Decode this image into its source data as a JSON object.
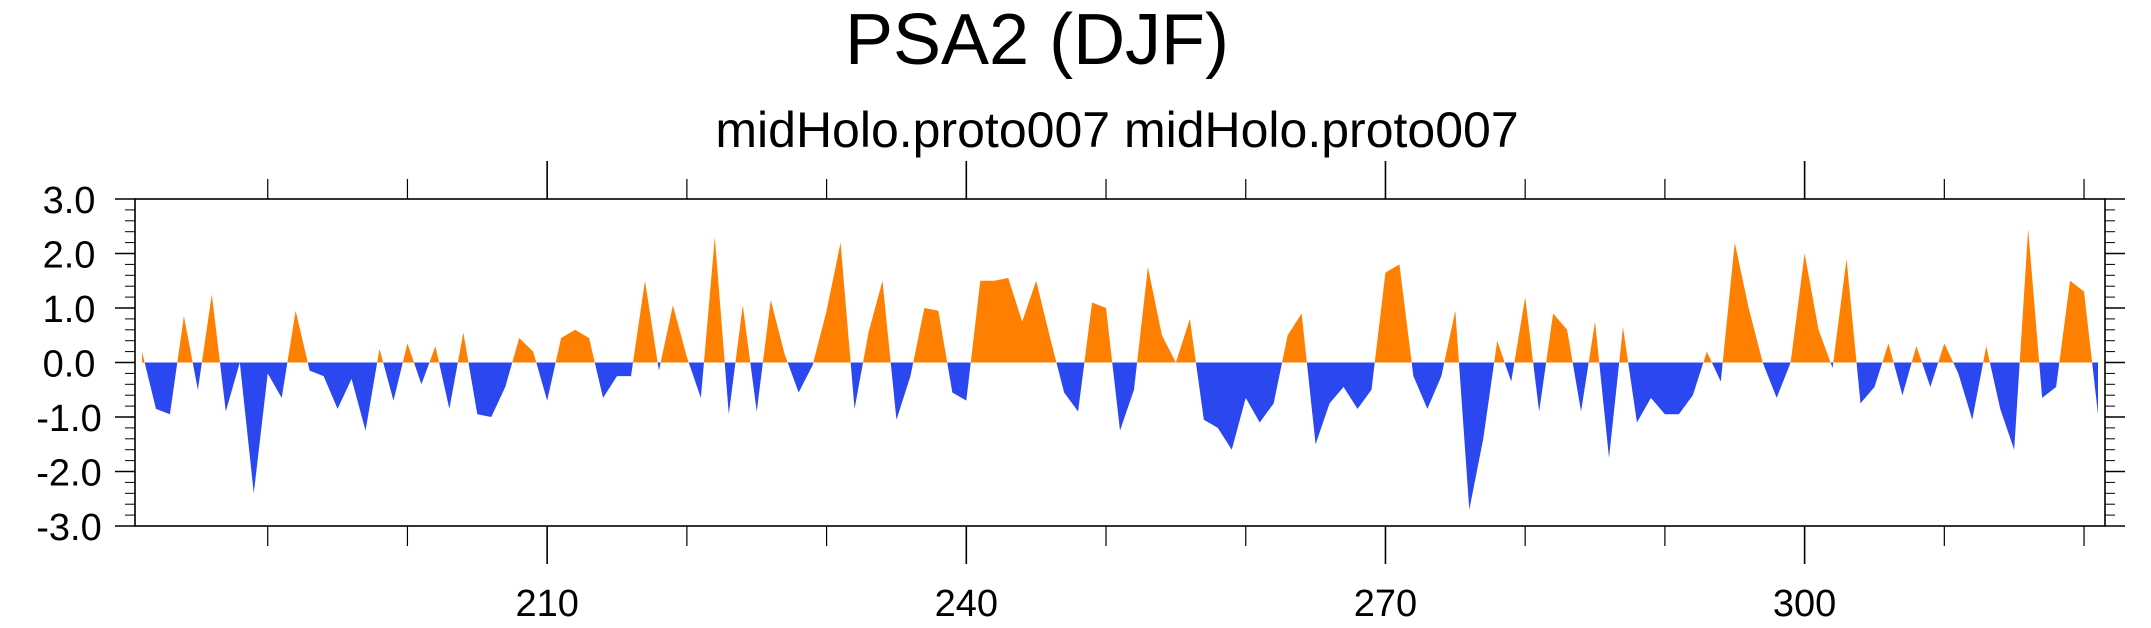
{
  "chart_data": {
    "type": "area",
    "title": "PSA2 (DJF)",
    "subtitle": "midHolo.proto007  midHolo.proto007",
    "xlabel": "",
    "ylabel": "",
    "xlim": [
      180.5,
      321.5
    ],
    "ylim": [
      -3.0,
      3.0
    ],
    "x_ticks": [
      210,
      240,
      270,
      300
    ],
    "y_ticks": [
      "3.0",
      "2.0",
      "1.0",
      "0.0",
      "-1.0",
      "-2.0",
      "-3.0"
    ],
    "y_tick_values": [
      3,
      2,
      1,
      0,
      -1,
      -2,
      -3
    ],
    "baseline": 0,
    "grid": false,
    "positive_color": "#ff8000",
    "negative_color": "#2a47f0",
    "x_start": 181,
    "values": [
      0.2,
      -0.85,
      -0.95,
      0.85,
      -0.5,
      1.25,
      -0.9,
      0.0,
      -2.4,
      -0.2,
      -0.65,
      0.95,
      -0.15,
      -0.25,
      -0.85,
      -0.3,
      -1.25,
      0.25,
      -0.7,
      0.35,
      -0.4,
      0.3,
      -0.85,
      0.55,
      -0.95,
      -1.0,
      -0.45,
      0.45,
      0.2,
      -0.7,
      0.45,
      0.6,
      0.45,
      -0.65,
      -0.25,
      -0.25,
      1.5,
      -0.15,
      1.05,
      0.1,
      -0.65,
      2.3,
      -0.95,
      1.05,
      -0.9,
      1.15,
      0.15,
      -0.55,
      -0.05,
      0.95,
      2.2,
      -0.85,
      0.55,
      1.5,
      -1.05,
      -0.25,
      1.0,
      0.95,
      -0.55,
      -0.7,
      1.5,
      1.5,
      1.55,
      0.75,
      1.5,
      0.45,
      -0.55,
      -0.9,
      1.1,
      1.0,
      -1.25,
      -0.5,
      1.75,
      0.5,
      0.0,
      0.8,
      -1.05,
      -1.2,
      -1.6,
      -0.65,
      -1.1,
      -0.75,
      0.5,
      0.9,
      -1.5,
      -0.75,
      -0.45,
      -0.85,
      -0.5,
      1.65,
      1.8,
      -0.25,
      -0.85,
      -0.25,
      0.95,
      -2.7,
      -1.4,
      0.4,
      -0.35,
      1.2,
      -0.9,
      0.9,
      0.6,
      -0.9,
      0.75,
      -1.75,
      0.65,
      -1.1,
      -0.65,
      -0.95,
      -0.95,
      -0.6,
      0.2,
      -0.35,
      2.2,
      1.0,
      0.0,
      -0.65,
      0.0,
      2.0,
      0.6,
      -0.1,
      1.9,
      -0.75,
      -0.45,
      0.35,
      -0.6,
      0.3,
      -0.45,
      0.35,
      -0.2,
      -1.05,
      0.3,
      -0.85,
      -1.6,
      2.45,
      -0.65,
      -0.45,
      1.5,
      1.3,
      -0.95
    ]
  }
}
